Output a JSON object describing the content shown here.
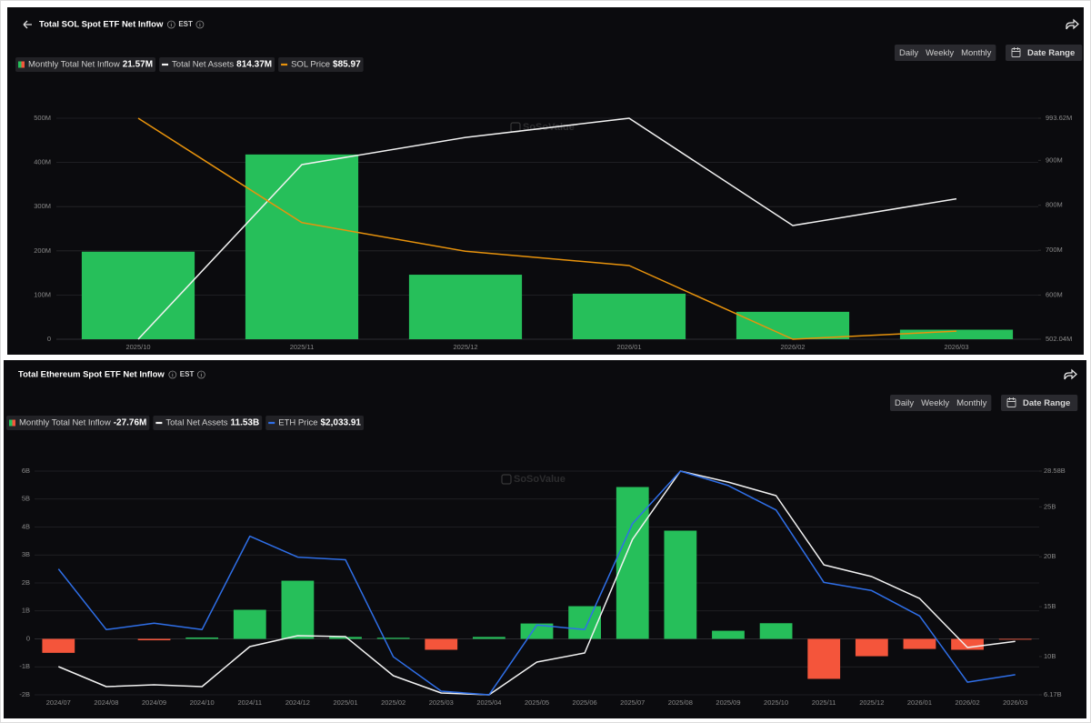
{
  "chart_data": [
    {
      "type": "bar",
      "title": "Total SOL Spot ETF Net Inflow",
      "timezone": "EST",
      "periods": [
        "Daily",
        "Weekly",
        "Monthly"
      ],
      "selected": "Monthly",
      "date_range_label": "Date Range",
      "watermark": "SoSoValue",
      "categories": [
        "2025/10",
        "2025/11",
        "2025/12",
        "2026/01",
        "2026/02",
        "2026/03"
      ],
      "ylim": [
        0,
        500
      ],
      "yticks": [
        0,
        {
          "value": 100,
          "label": "100M"
        },
        {
          "value": 200,
          "label": "200M"
        },
        {
          "value": 300,
          "label": "300M"
        },
        {
          "value": 400,
          "label": "400M"
        },
        {
          "value": 500,
          "label": "500M"
        }
      ],
      "y2lim": [
        502.04,
        993.62
      ],
      "y2ticks": [
        {
          "value": 502.04,
          "label": "502.04M"
        },
        {
          "value": 600,
          "label": "600M"
        },
        {
          "value": 700,
          "label": "700M"
        },
        {
          "value": 800,
          "label": "800M"
        },
        {
          "value": 900,
          "label": "900M"
        },
        {
          "value": 993.62,
          "label": "993.62M"
        }
      ],
      "grid": true,
      "series": [
        {
          "name": "Monthly Total Net Inflow",
          "legend_value": "21.57M",
          "type": "bar",
          "color": "#26bf5a",
          "negative_color": "#f4553b",
          "values": [
            198,
            418,
            146,
            103,
            62,
            21.57
          ]
        },
        {
          "name": "Total Net Assets",
          "legend_value": "814.37M",
          "type": "line",
          "axis": "y2",
          "color": "#f2f2f2",
          "values": [
            502.04,
            890.4,
            951,
            993.62,
            755,
            814.37
          ]
        },
        {
          "name": "SOL Price",
          "legend_value": "$85.97",
          "type": "line",
          "axis": "own",
          "color": "#e8930c",
          "values": [
            190,
            139,
            125,
            118,
            82,
            85.97
          ]
        }
      ]
    },
    {
      "type": "bar",
      "title": "Total Ethereum Spot ETF Net Inflow",
      "timezone": "EST",
      "periods": [
        "Daily",
        "Weekly",
        "Monthly"
      ],
      "selected": "Monthly",
      "date_range_label": "Date Range",
      "watermark": "SoSoValue",
      "categories": [
        "2024/07",
        "2024/08",
        "2024/09",
        "2024/10",
        "2024/11",
        "2024/12",
        "2025/01",
        "2025/02",
        "2025/03",
        "2025/04",
        "2025/05",
        "2025/06",
        "2025/07",
        "2025/08",
        "2025/09",
        "2025/10",
        "2025/11",
        "2025/12",
        "2026/01",
        "2026/02",
        "2026/03"
      ],
      "ylim": [
        -2,
        6
      ],
      "yticks": [
        {
          "value": -2,
          "label": "-2B"
        },
        {
          "value": -1,
          "label": "-1B"
        },
        0,
        {
          "value": 1,
          "label": "1B"
        },
        {
          "value": 2,
          "label": "2B"
        },
        {
          "value": 3,
          "label": "3B"
        },
        {
          "value": 4,
          "label": "4B"
        },
        {
          "value": 5,
          "label": "5B"
        },
        {
          "value": 6,
          "label": "6B"
        }
      ],
      "y2lim": [
        6.17,
        28.58
      ],
      "y2ticks": [
        {
          "value": 6.17,
          "label": "6.17B"
        },
        {
          "value": 10,
          "label": "10B"
        },
        {
          "value": 15,
          "label": "15B"
        },
        {
          "value": 20,
          "label": "20B"
        },
        {
          "value": 25,
          "label": "25B"
        },
        {
          "value": 28.58,
          "label": "28.58B"
        }
      ],
      "grid": true,
      "series": [
        {
          "name": "Monthly Total Net Inflow",
          "legend_value": "-27.76M",
          "type": "bar",
          "color": "#26bf5a",
          "negative_color": "#f4553b",
          "values": [
            -0.5,
            0,
            -0.05,
            0.05,
            1.04,
            2.08,
            0.07,
            0.04,
            -0.39,
            0.07,
            0.55,
            1.17,
            5.43,
            3.87,
            0.29,
            0.56,
            -1.43,
            -0.62,
            -0.36,
            -0.39,
            -0.02776
          ]
        },
        {
          "name": "Total Net Assets",
          "legend_value": "11.53B",
          "type": "line",
          "axis": "y2",
          "color": "#f2f2f2",
          "values": [
            8.99,
            6.99,
            7.17,
            6.99,
            11.0,
            12.09,
            12.0,
            8.08,
            6.35,
            6.17,
            9.45,
            10.36,
            21.74,
            28.58,
            27.48,
            26.12,
            19.19,
            18.01,
            15.82,
            10.91,
            11.53
          ]
        },
        {
          "name": "ETH Price",
          "legend_value": "$2,033.91",
          "type": "line",
          "axis": "own",
          "color": "#2f6fe8",
          "values": [
            3263,
            2558,
            2632,
            2558,
            3643,
            3400,
            3369,
            2242,
            1842,
            1800,
            2611,
            2558,
            3790,
            4400,
            4232,
            3948,
            3106,
            3011,
            2716,
            1947,
            2033.91
          ]
        }
      ]
    }
  ]
}
